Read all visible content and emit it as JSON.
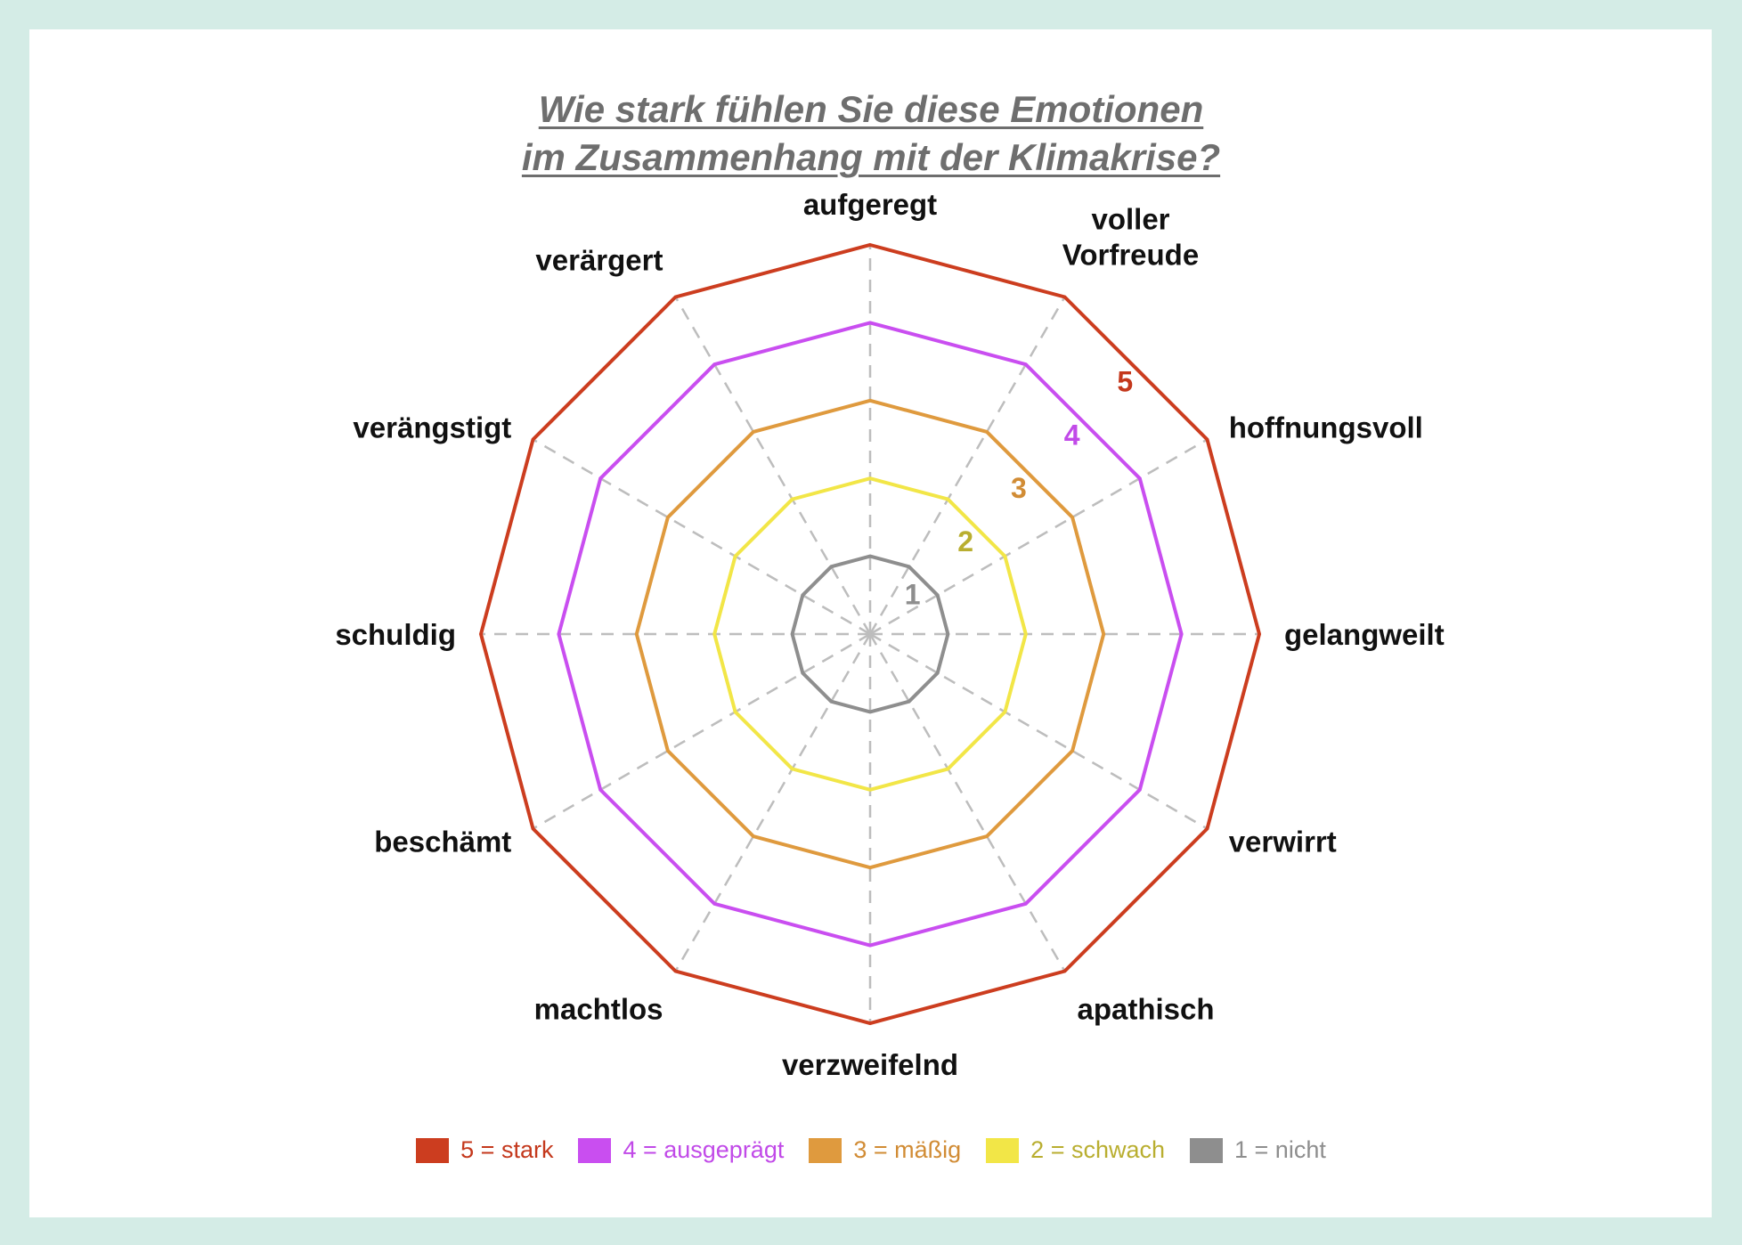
{
  "chart_data": {
    "type": "radar",
    "title_line1": "Wie stark fühlen Sie diese Emotionen",
    "title_line2": "im Zusammenhang mit der Klimakrise?",
    "axes": [
      [
        "aufgeregt"
      ],
      [
        "voller",
        "Vorfreude"
      ],
      [
        "hoffnungsvoll"
      ],
      [
        "gelangweilt"
      ],
      [
        "verwirrt"
      ],
      [
        "apathisch"
      ],
      [
        "verzweifelnd"
      ],
      [
        "machtlos"
      ],
      [
        "beschämt"
      ],
      [
        "schuldig"
      ],
      [
        "verängstigt"
      ],
      [
        "verärgert"
      ]
    ],
    "levels": [
      {
        "value": 1,
        "tick_label": "1",
        "legend": "1 = nicht",
        "color": "#8e8e8e",
        "text_color": "#8e8e8e"
      },
      {
        "value": 2,
        "tick_label": "2",
        "legend": "2 = schwach",
        "color": "#f2e647",
        "text_color": "#b9ae30"
      },
      {
        "value": 3,
        "tick_label": "3",
        "legend": "3 = mäßig",
        "color": "#df9a3e",
        "text_color": "#d18c35"
      },
      {
        "value": 4,
        "tick_label": "4",
        "legend": "4 = ausgeprägt",
        "color": "#c94ef0",
        "text_color": "#c14ae8"
      },
      {
        "value": 5,
        "tick_label": "5",
        "legend": "5 = stark",
        "color": "#cc3d1f",
        "text_color": "#c4381c"
      }
    ],
    "legend_order": [
      5,
      4,
      3,
      2,
      1
    ],
    "range": [
      0,
      5
    ],
    "grid": "dashed spokes",
    "legend_position": "bottom"
  }
}
